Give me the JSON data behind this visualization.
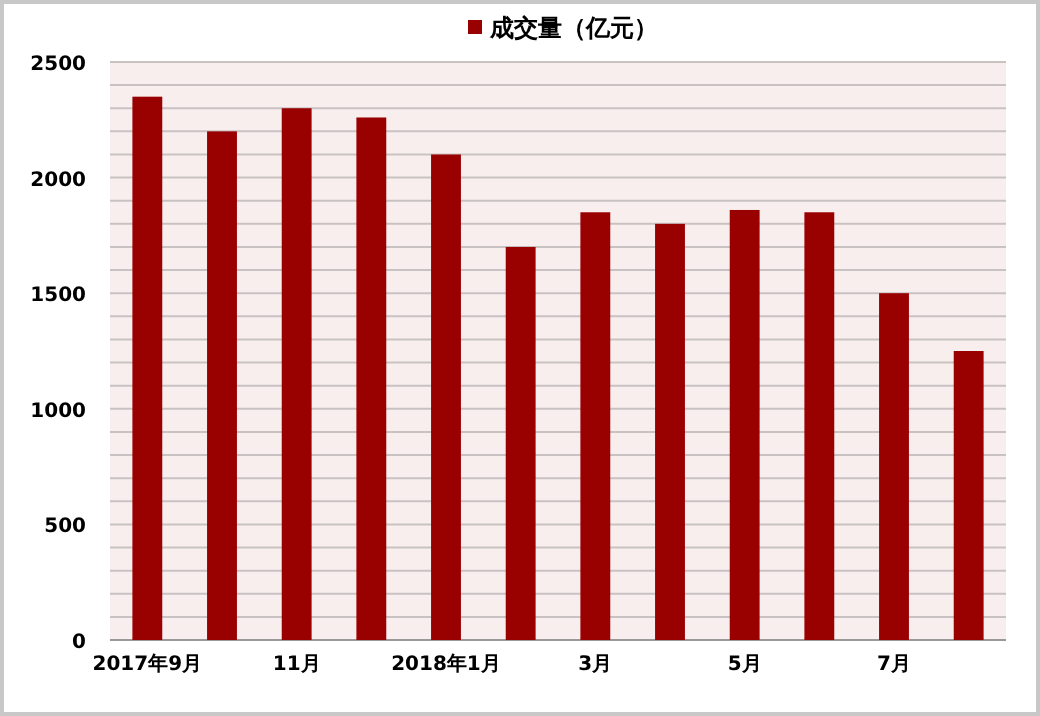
{
  "chart_data": {
    "type": "bar",
    "categories": [
      "2017年9月",
      null,
      "11月",
      null,
      "2018年1月",
      null,
      "3月",
      null,
      "5月",
      null,
      "7月",
      null
    ],
    "series": [
      {
        "name": "成交量（亿元）",
        "color": "#990000",
        "values": [
          2350,
          2200,
          2300,
          2260,
          2100,
          1700,
          1850,
          1800,
          1860,
          1850,
          1500,
          1250
        ]
      }
    ],
    "ylim": [
      0,
      2500
    ],
    "yticks": [
      0,
      {
        "value": 100,
        "label": null
      },
      {
        "value": 200,
        "label": null
      },
      {
        "value": 300,
        "label": null
      },
      {
        "value": 400,
        "label": null
      },
      500,
      {
        "value": 600,
        "label": null
      },
      {
        "value": 700,
        "label": null
      },
      {
        "value": 800,
        "label": null
      },
      {
        "value": 900,
        "label": null
      },
      1000,
      {
        "value": 1100,
        "label": null
      },
      {
        "value": 1200,
        "label": null
      },
      {
        "value": 1300,
        "label": null
      },
      {
        "value": 1400,
        "label": null
      },
      1500,
      {
        "value": 1600,
        "label": null
      },
      {
        "value": 1700,
        "label": null
      },
      {
        "value": 1800,
        "label": null
      },
      {
        "value": 1900,
        "label": null
      },
      2000,
      {
        "value": 2100,
        "label": null
      },
      {
        "value": 2200,
        "label": null
      },
      {
        "value": 2300,
        "label": null
      },
      {
        "value": 2400,
        "label": null
      },
      2500
    ],
    "grid": "y",
    "legend": "top"
  }
}
